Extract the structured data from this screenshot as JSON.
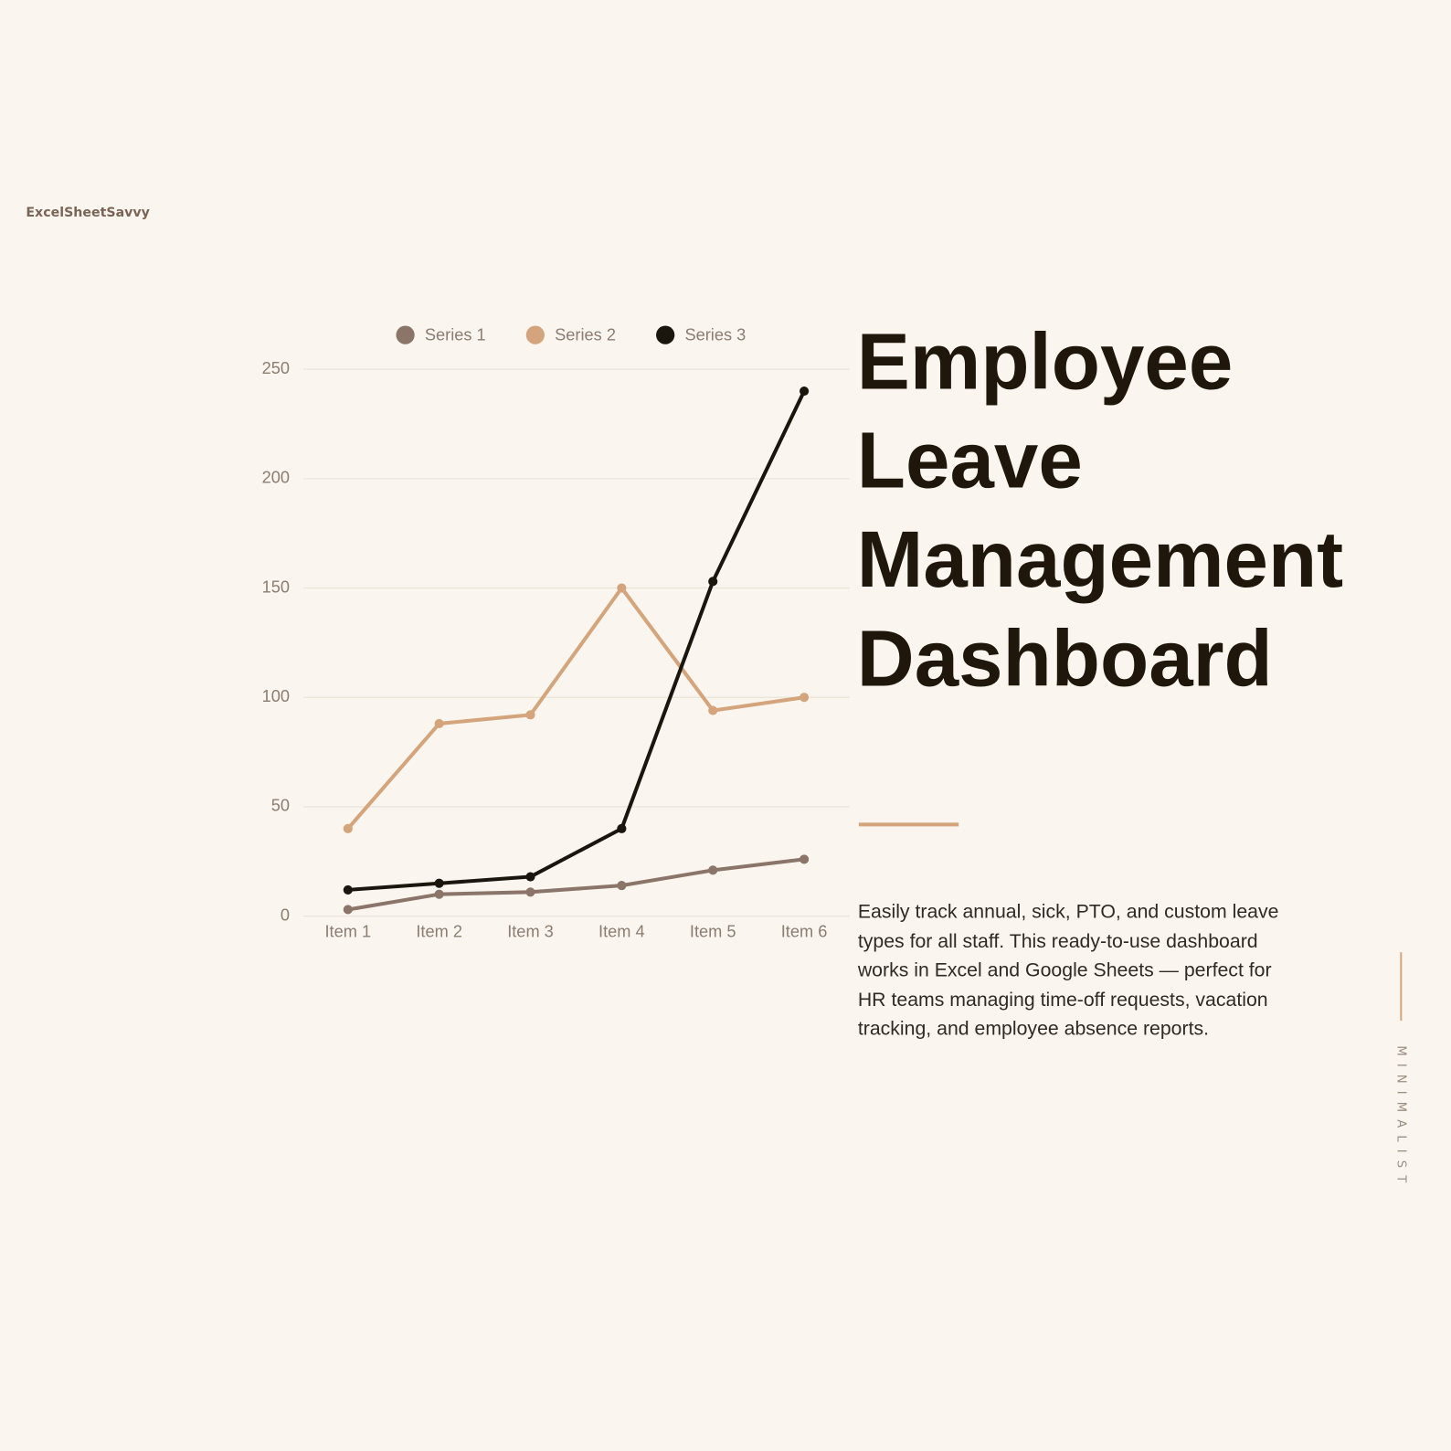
{
  "brand": "ExcelSheetSavvy",
  "title": "Employee Leave Management Dashboard",
  "description": "Easily track annual, sick, PTO, and custom leave types for all staff. This ready-to-use dashboard works in Excel and Google Sheets — perfect for HR teams managing time-off requests, vacation tracking, and employee absence reports.",
  "side_label": "MINIMALIST",
  "chart_data": {
    "type": "line",
    "categories": [
      "Item 1",
      "Item 2",
      "Item 3",
      "Item 4",
      "Item 5",
      "Item 6"
    ],
    "series": [
      {
        "name": "Series 1",
        "color": "#8b7468",
        "values": [
          3,
          10,
          11,
          14,
          21,
          26
        ]
      },
      {
        "name": "Series 2",
        "color": "#d4a57c",
        "values": [
          40,
          88,
          92,
          150,
          94,
          100
        ]
      },
      {
        "name": "Series 3",
        "color": "#1a160e",
        "values": [
          12,
          15,
          18,
          40,
          153,
          240
        ]
      }
    ],
    "ylim": [
      0,
      250
    ],
    "yticks": [
      0,
      50,
      100,
      150,
      200,
      250
    ],
    "grid": true,
    "legend": "top"
  }
}
